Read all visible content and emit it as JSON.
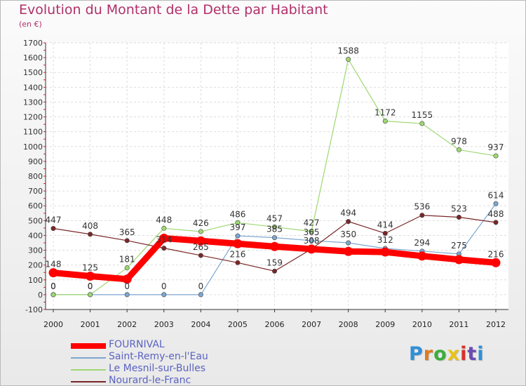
{
  "header": {
    "title": "Evolution du Montant de la Dette par Habitant",
    "subtitle": "(en €)"
  },
  "logo": {
    "text": "Proxiti",
    "letter_colors": [
      "#2f8fd8",
      "#e07a1f",
      "#3cae3c",
      "#e8c21a",
      "#d6312e",
      "#6a4bb0",
      "#2f8fd8"
    ]
  },
  "chart_data": {
    "type": "line",
    "x": [
      "2000",
      "2001",
      "2002",
      "2003",
      "2004",
      "2005",
      "2006",
      "2007",
      "2008",
      "2009",
      "2010",
      "2011",
      "2012"
    ],
    "ylim": [
      -100,
      1700
    ],
    "y_ticks": [
      -100,
      0,
      100,
      200,
      300,
      400,
      500,
      600,
      700,
      800,
      900,
      1000,
      1100,
      1200,
      1300,
      1400,
      1500,
      1600,
      1700
    ],
    "grid": true,
    "legend_position": "bottom-left",
    "series": [
      {
        "name": "FOURNIVAL",
        "color": "#ff0000",
        "width": 9,
        "values": [
          148,
          125,
          105,
          381,
          363,
          344,
          325,
          308,
          292,
          288,
          261,
          237,
          216
        ],
        "labels": [
          "148",
          "125",
          "",
          "",
          "",
          "",
          "",
          "",
          "",
          "",
          "",
          "",
          "216"
        ]
      },
      {
        "name": "Saint-Remy-en-l'Eau",
        "color": "#7ca6d0",
        "width": 1.2,
        "values": [
          0,
          0,
          0,
          0,
          0,
          397,
          385,
          365,
          350,
          312,
          294,
          275,
          614
        ],
        "labels": [
          "0",
          "0",
          "0",
          "0",
          "0",
          "397",
          "385",
          "365",
          "350",
          "312",
          "294",
          "275",
          "614"
        ]
      },
      {
        "name": "Le Mesnil-sur-Bulles",
        "color": "#9ed872",
        "width": 1.2,
        "values": [
          0,
          0,
          181,
          448,
          426,
          486,
          457,
          427,
          1588,
          1172,
          1155,
          978,
          937
        ],
        "labels": [
          "0",
          "0",
          "181",
          "448",
          "426",
          "486",
          "457",
          "427",
          "1588",
          "1172",
          "1155",
          "978",
          "937"
        ]
      },
      {
        "name": "Nourard-le-Franc",
        "color": "#7a2628",
        "width": 1.2,
        "values": [
          447,
          408,
          365,
          314,
          265,
          216,
          159,
          308,
          494,
          414,
          536,
          523,
          488
        ],
        "labels": [
          "447",
          "408",
          "365",
          "314",
          "265",
          "216",
          "159",
          "308",
          "494",
          "414",
          "536",
          "523",
          "488"
        ]
      }
    ]
  }
}
